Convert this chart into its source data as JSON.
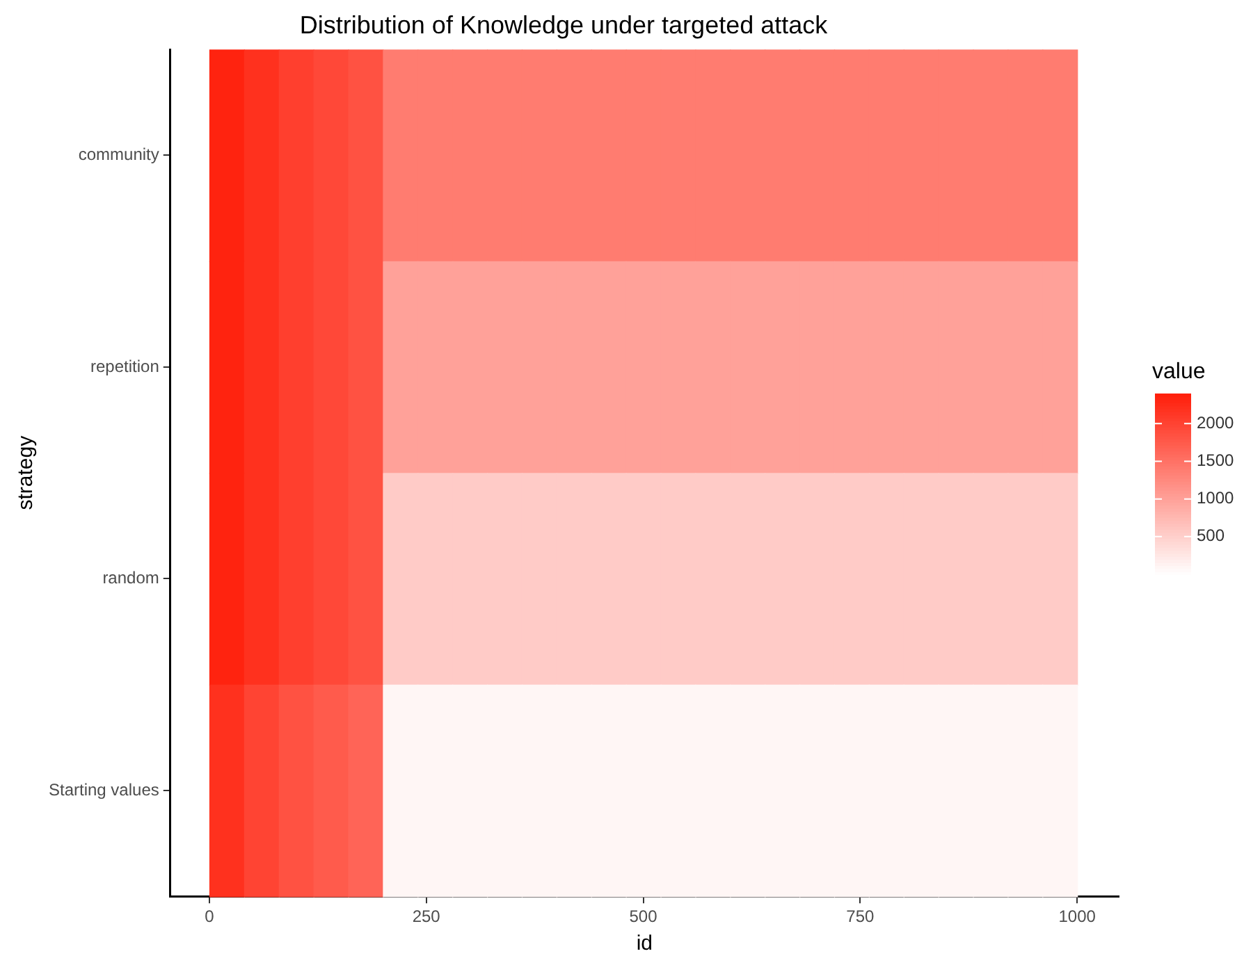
{
  "chart_data": {
    "type": "heatmap",
    "title": "Distribution of Knowledge under targeted attack",
    "xlabel": "id",
    "ylabel": "strategy",
    "clabel": "value",
    "x": [
      20,
      60,
      100,
      140,
      180,
      220,
      260,
      300,
      340,
      380,
      420,
      460,
      500,
      540,
      580,
      620,
      660,
      700,
      740,
      780,
      820,
      860,
      900,
      940,
      980
    ],
    "xlim": [
      -45,
      1048
    ],
    "xticks": [
      0,
      250,
      500,
      750,
      1000
    ],
    "y_categories": [
      "community",
      "repetition",
      "random",
      "Starting values"
    ],
    "cells": [
      [
        2350,
        2200,
        2050,
        1950,
        1850,
        1400,
        1400,
        1400,
        1400,
        1400,
        1400,
        1400,
        1400,
        1400,
        1400,
        1400,
        1400,
        1400,
        1400,
        1400,
        1400,
        1400,
        1400,
        1400,
        1400
      ],
      [
        2350,
        2200,
        2050,
        1950,
        1850,
        1000,
        1000,
        1000,
        1000,
        1000,
        1000,
        1000,
        1000,
        1000,
        1000,
        1000,
        1000,
        1000,
        1000,
        1000,
        1000,
        1000,
        1000,
        1000,
        1000
      ],
      [
        2350,
        2200,
        2050,
        1950,
        1850,
        550,
        550,
        550,
        550,
        550,
        550,
        550,
        550,
        550,
        550,
        550,
        550,
        550,
        550,
        550,
        550,
        550,
        550,
        550,
        550
      ],
      [
        2200,
        2000,
        1850,
        1750,
        1650,
        100,
        100,
        100,
        100,
        100,
        100,
        100,
        100,
        100,
        100,
        100,
        100,
        100,
        100,
        100,
        100,
        100,
        100,
        100,
        100
      ]
    ],
    "clim": [
      0,
      2400
    ],
    "cticks": [
      500,
      1000,
      1500,
      2000
    ]
  }
}
